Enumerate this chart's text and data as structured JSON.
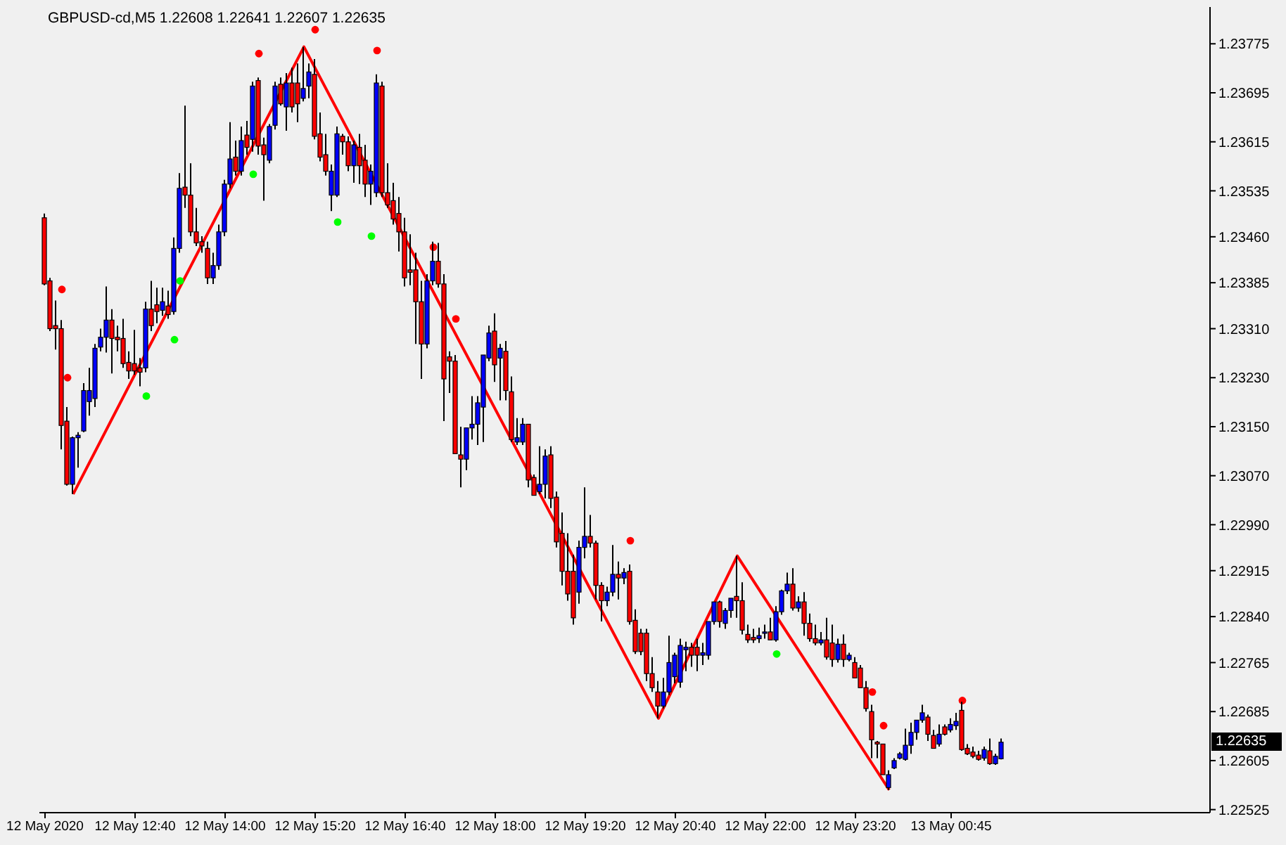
{
  "chart_data": {
    "type": "candlestick",
    "title": "GBPUSD-cd,M5 1.22608 1.22641 1.22607 1.22635",
    "x": [
      "2020-05-12T11:20",
      "2020-05-12T11:25",
      "2020-05-12T11:30",
      "2020-05-12T11:35",
      "2020-05-12T11:40",
      "2020-05-12T11:45",
      "2020-05-12T11:50",
      "2020-05-12T11:55",
      "2020-05-12T12:00",
      "2020-05-12T12:05",
      "2020-05-12T12:10",
      "2020-05-12T12:15",
      "2020-05-12T12:20",
      "2020-05-12T12:25",
      "2020-05-12T12:30",
      "2020-05-12T12:35",
      "2020-05-12T12:40",
      "2020-05-12T12:45",
      "2020-05-12T12:50",
      "2020-05-12T12:55",
      "2020-05-12T13:00",
      "2020-05-12T13:05",
      "2020-05-12T13:10",
      "2020-05-12T13:15",
      "2020-05-12T13:20",
      "2020-05-12T13:25",
      "2020-05-12T13:30",
      "2020-05-12T13:35",
      "2020-05-12T13:40",
      "2020-05-12T13:45",
      "2020-05-12T13:50",
      "2020-05-12T13:55",
      "2020-05-12T14:00",
      "2020-05-12T14:05",
      "2020-05-12T14:10",
      "2020-05-12T14:15",
      "2020-05-12T14:20",
      "2020-05-12T14:25",
      "2020-05-12T14:30",
      "2020-05-12T14:35",
      "2020-05-12T14:40",
      "2020-05-12T14:45",
      "2020-05-12T14:50",
      "2020-05-12T14:55",
      "2020-05-12T15:00",
      "2020-05-12T15:05",
      "2020-05-12T15:10",
      "2020-05-12T15:15",
      "2020-05-12T15:20",
      "2020-05-12T15:25",
      "2020-05-12T15:30",
      "2020-05-12T15:35",
      "2020-05-12T15:40",
      "2020-05-12T15:45",
      "2020-05-12T15:50",
      "2020-05-12T15:55",
      "2020-05-12T16:00",
      "2020-05-12T16:05",
      "2020-05-12T16:10",
      "2020-05-12T16:15",
      "2020-05-12T16:20",
      "2020-05-12T16:25",
      "2020-05-12T16:30",
      "2020-05-12T16:35",
      "2020-05-12T16:40",
      "2020-05-12T16:45",
      "2020-05-12T16:50",
      "2020-05-12T16:55",
      "2020-05-12T17:00",
      "2020-05-12T17:05",
      "2020-05-12T17:10",
      "2020-05-12T17:15",
      "2020-05-12T17:20",
      "2020-05-12T17:25",
      "2020-05-12T17:30",
      "2020-05-12T17:35",
      "2020-05-12T17:40",
      "2020-05-12T17:45",
      "2020-05-12T17:50",
      "2020-05-12T17:55",
      "2020-05-12T18:00",
      "2020-05-12T18:05",
      "2020-05-12T18:10",
      "2020-05-12T18:15",
      "2020-05-12T18:20",
      "2020-05-12T18:25",
      "2020-05-12T18:30",
      "2020-05-12T18:35",
      "2020-05-12T18:40",
      "2020-05-12T18:45",
      "2020-05-12T18:50",
      "2020-05-12T18:55",
      "2020-05-12T19:00",
      "2020-05-12T19:05",
      "2020-05-12T19:10",
      "2020-05-12T19:15",
      "2020-05-12T19:20",
      "2020-05-12T19:25",
      "2020-05-12T19:30",
      "2020-05-12T19:35",
      "2020-05-12T19:40",
      "2020-05-12T19:45",
      "2020-05-12T19:50",
      "2020-05-12T19:55",
      "2020-05-12T20:00",
      "2020-05-12T20:05",
      "2020-05-12T20:10",
      "2020-05-12T20:15",
      "2020-05-12T20:20",
      "2020-05-12T20:25",
      "2020-05-12T20:30",
      "2020-05-12T20:35",
      "2020-05-12T20:40",
      "2020-05-12T20:45",
      "2020-05-12T20:50",
      "2020-05-12T20:55",
      "2020-05-12T21:00",
      "2020-05-12T21:05",
      "2020-05-12T21:10",
      "2020-05-12T21:15",
      "2020-05-12T21:20",
      "2020-05-12T21:25",
      "2020-05-12T21:30",
      "2020-05-12T21:35",
      "2020-05-12T21:40",
      "2020-05-12T21:45",
      "2020-05-12T21:50",
      "2020-05-12T21:55",
      "2020-05-12T22:00",
      "2020-05-12T22:05",
      "2020-05-12T22:10",
      "2020-05-12T22:15",
      "2020-05-12T22:20",
      "2020-05-12T22:25",
      "2020-05-12T22:30",
      "2020-05-12T22:35",
      "2020-05-12T22:40",
      "2020-05-12T22:45",
      "2020-05-12T22:50",
      "2020-05-12T22:55",
      "2020-05-12T23:00",
      "2020-05-12T23:05",
      "2020-05-12T23:10",
      "2020-05-12T23:15",
      "2020-05-12T23:20",
      "2020-05-12T23:25",
      "2020-05-12T23:30",
      "2020-05-12T23:35",
      "2020-05-12T23:40",
      "2020-05-12T23:45",
      "2020-05-12T23:50",
      "2020-05-12T23:55",
      "2020-05-13T00:00",
      "2020-05-13T00:05",
      "2020-05-13T00:10",
      "2020-05-13T00:15",
      "2020-05-13T00:20",
      "2020-05-13T00:25",
      "2020-05-13T00:30",
      "2020-05-13T00:35",
      "2020-05-13T00:40",
      "2020-05-13T00:45",
      "2020-05-13T00:50",
      "2020-05-13T00:55",
      "2020-05-13T01:00",
      "2020-05-13T01:05",
      "2020-05-13T01:10",
      "2020-05-13T01:15",
      "2020-05-13T01:20",
      "2020-05-13T01:25",
      "2020-05-13T01:30"
    ],
    "xlim": [
      "2020-05-12T11:15",
      "2020-05-13T04:35"
    ],
    "xticks": [
      {
        "value": "2020-05-12T11:20",
        "label": "12 May 2020"
      },
      {
        "value": "2020-05-12T12:40",
        "label": "12 May 12:40"
      },
      {
        "value": "2020-05-12T14:00",
        "label": "12 May 14:00"
      },
      {
        "value": "2020-05-12T15:20",
        "label": "12 May 15:20"
      },
      {
        "value": "2020-05-12T16:40",
        "label": "12 May 16:40"
      },
      {
        "value": "2020-05-12T18:00",
        "label": "12 May 18:00"
      },
      {
        "value": "2020-05-12T19:20",
        "label": "12 May 19:20"
      },
      {
        "value": "2020-05-12T20:40",
        "label": "12 May 20:40"
      },
      {
        "value": "2020-05-12T22:00",
        "label": "12 May 22:00"
      },
      {
        "value": "2020-05-12T23:20",
        "label": "12 May 23:20"
      },
      {
        "value": "2020-05-13T00:45",
        "label": "13 May 00:45"
      }
    ],
    "ylim": [
      1.2252,
      1.23835
    ],
    "yticks": [
      1.23775,
      1.23695,
      1.23615,
      1.23535,
      {
        "value": 1.2346,
        "label": "1.23460"
      },
      1.23385,
      {
        "value": 1.2331,
        "label": "1.23310"
      },
      {
        "value": 1.2323,
        "label": "1.23230"
      },
      {
        "value": 1.2315,
        "label": "1.23150"
      },
      {
        "value": 1.2307,
        "label": "1.23070"
      },
      {
        "value": 1.2299,
        "label": "1.22990"
      },
      1.22915,
      {
        "value": 1.2284,
        "label": "1.22840"
      },
      1.22765,
      1.22685,
      1.22605,
      1.22525
    ],
    "annotations": [
      "1.22635"
    ],
    "series": [
      {
        "ohlc": [
          [
            1.23491,
            1.23498,
            1.23381,
            1.23383
          ],
          [
            1.23388,
            1.23393,
            1.23306,
            1.2331
          ],
          [
            1.23315,
            1.23356,
            1.23276,
            1.2331
          ],
          [
            1.2331,
            1.23324,
            1.23113,
            1.23152
          ],
          [
            1.23159,
            1.23182,
            1.23054,
            1.23056
          ],
          [
            1.23056,
            1.23134,
            1.2304,
            1.23132
          ],
          [
            1.23132,
            1.23141,
            1.23083,
            1.23136
          ],
          [
            1.23143,
            1.23221,
            1.23141,
            1.23209
          ],
          [
            1.23191,
            1.23246,
            1.23168,
            1.23209
          ],
          [
            1.23196,
            1.23285,
            1.23182,
            1.23278
          ],
          [
            1.2328,
            1.2331,
            1.23273,
            1.23296
          ],
          [
            1.23296,
            1.23379,
            1.23271,
            1.23324
          ],
          [
            1.23324,
            1.23342,
            1.23237,
            1.23294
          ],
          [
            1.23296,
            1.23315,
            1.23273,
            1.23292
          ],
          [
            1.23294,
            1.23326,
            1.23246,
            1.23253
          ],
          [
            1.23255,
            1.23273,
            1.23228,
            1.23241
          ],
          [
            1.23253,
            1.23308,
            1.23235,
            1.23241
          ],
          [
            1.23246,
            1.23262,
            1.23216,
            1.23239
          ],
          [
            1.23246,
            1.23354,
            1.23239,
            1.23342
          ],
          [
            1.23342,
            1.23388,
            1.23306,
            1.23315
          ],
          [
            1.23349,
            1.23377,
            1.23319,
            1.23338
          ],
          [
            1.2334,
            1.23377,
            1.23331,
            1.23354
          ],
          [
            1.23347,
            1.23372,
            1.23326,
            1.23333
          ],
          [
            1.23338,
            1.23459,
            1.23333,
            1.23441
          ],
          [
            1.23441,
            1.23564,
            1.23434,
            1.23539
          ],
          [
            1.23541,
            1.23674,
            1.23507,
            1.23528
          ],
          [
            1.23528,
            1.2358,
            1.23461,
            1.23468
          ],
          [
            1.23468,
            1.23507,
            1.23445,
            1.2345
          ],
          [
            1.23452,
            1.23461,
            1.23434,
            1.23445
          ],
          [
            1.23441,
            1.23452,
            1.23383,
            1.23393
          ],
          [
            1.23393,
            1.23434,
            1.23383,
            1.23413
          ],
          [
            1.23413,
            1.2348,
            1.23406,
            1.23468
          ],
          [
            1.23468,
            1.23553,
            1.23461,
            1.23546
          ],
          [
            1.23546,
            1.23647,
            1.23539,
            1.23587
          ],
          [
            1.2359,
            1.23617,
            1.2356,
            1.23567
          ],
          [
            1.23567,
            1.2364,
            1.2356,
            1.23617
          ],
          [
            1.23626,
            1.23649,
            1.23594,
            1.23606
          ],
          [
            1.23619,
            1.23713,
            1.23599,
            1.23706
          ],
          [
            1.23715,
            1.2372,
            1.23594,
            1.23608
          ],
          [
            1.2361,
            1.23622,
            1.23519,
            1.23594
          ],
          [
            1.23585,
            1.23644,
            1.2358,
            1.2364
          ],
          [
            1.23642,
            1.23713,
            1.23635,
            1.23706
          ],
          [
            1.23709,
            1.2372,
            1.23674,
            1.23677
          ],
          [
            1.23672,
            1.23727,
            1.23633,
            1.23711
          ],
          [
            1.23711,
            1.23736,
            1.23663,
            1.23672
          ],
          [
            1.23711,
            1.23743,
            1.23647,
            1.23677
          ],
          [
            1.23686,
            1.2377,
            1.23681,
            1.23702
          ],
          [
            1.23706,
            1.23743,
            1.23686,
            1.23729
          ],
          [
            1.23725,
            1.2375,
            1.23619,
            1.23624
          ],
          [
            1.23628,
            1.23663,
            1.23583,
            1.2359
          ],
          [
            1.23594,
            1.23628,
            1.2356,
            1.23567
          ],
          [
            1.23528,
            1.23578,
            1.23502,
            1.23567
          ],
          [
            1.23528,
            1.2364,
            1.23525,
            1.23628
          ],
          [
            1.23624,
            1.23628,
            1.23594,
            1.23615
          ],
          [
            1.23615,
            1.23624,
            1.23567,
            1.23576
          ],
          [
            1.23576,
            1.23617,
            1.23548,
            1.2361
          ],
          [
            1.23606,
            1.23628,
            1.23546,
            1.23576
          ],
          [
            1.23585,
            1.2361,
            1.23525,
            1.23546
          ],
          [
            1.23546,
            1.23578,
            1.23512,
            1.23567
          ],
          [
            1.23532,
            1.23725,
            1.23525,
            1.23711
          ],
          [
            1.23706,
            1.23713,
            1.23525,
            1.23532
          ],
          [
            1.23532,
            1.2358,
            1.23507,
            1.23512
          ],
          [
            1.23519,
            1.23548,
            1.2348,
            1.23489
          ],
          [
            1.23498,
            1.23525,
            1.23436,
            1.23468
          ],
          [
            1.23468,
            1.23491,
            1.23379,
            1.23393
          ],
          [
            1.23406,
            1.23464,
            1.23381,
            1.23402
          ],
          [
            1.23406,
            1.23434,
            1.23285,
            1.23354
          ],
          [
            1.23354,
            1.23388,
            1.23228,
            1.23285
          ],
          [
            1.23285,
            1.23399,
            1.23278,
            1.23388
          ],
          [
            1.23388,
            1.23452,
            1.23381,
            1.2342
          ],
          [
            1.2342,
            1.2345,
            1.23377,
            1.23383
          ],
          [
            1.23383,
            1.23399,
            1.23159,
            1.23228
          ],
          [
            1.23264,
            1.23273,
            1.23205,
            1.23257
          ],
          [
            1.23257,
            1.23267,
            1.23106,
            1.23106
          ],
          [
            1.23104,
            1.2315,
            1.23051,
            1.23097
          ],
          [
            1.23097,
            1.23148,
            1.23079,
            1.23148
          ],
          [
            1.23148,
            1.232,
            1.23129,
            1.23154
          ],
          [
            1.23154,
            1.232,
            1.2312,
            1.23189
          ],
          [
            1.23182,
            1.23267,
            1.23125,
            1.23267
          ],
          [
            1.23262,
            1.23315,
            1.23257,
            1.23303
          ],
          [
            1.23306,
            1.23335,
            1.23223,
            1.23251
          ],
          [
            1.23262,
            1.23285,
            1.23193,
            1.23278
          ],
          [
            1.23273,
            1.2329,
            1.23193,
            1.23209
          ],
          [
            1.23207,
            1.23232,
            1.23125,
            1.23129
          ],
          [
            1.23125,
            1.23164,
            1.2312,
            1.23132
          ],
          [
            1.23125,
            1.23164,
            1.2312,
            1.23154
          ],
          [
            1.23154,
            1.23154,
            1.23051,
            1.23063
          ],
          [
            1.23067,
            1.23072,
            1.23038,
            1.23038
          ],
          [
            1.23044,
            1.23118,
            1.2304,
            1.23056
          ],
          [
            1.23056,
            1.23113,
            1.23033,
            1.23102
          ],
          [
            1.23104,
            1.23118,
            1.23017,
            1.23033
          ],
          [
            1.23035,
            1.23044,
            1.22953,
            1.22962
          ],
          [
            1.22976,
            1.2301,
            1.22891,
            1.22914
          ],
          [
            1.22914,
            1.22976,
            1.22866,
            1.22877
          ],
          [
            1.22914,
            1.22941,
            1.22827,
            1.22838
          ],
          [
            1.2288,
            1.22964,
            1.22861,
            1.22953
          ],
          [
            1.22953,
            1.23051,
            1.22935,
            1.22971
          ],
          [
            1.22971,
            1.23006,
            1.22953,
            1.2296
          ],
          [
            1.2296,
            1.22964,
            1.22868,
            1.22891
          ],
          [
            1.22891,
            1.22896,
            1.22832,
            1.22866
          ],
          [
            1.22866,
            1.22889,
            1.22857,
            1.2288
          ],
          [
            1.2288,
            1.22957,
            1.22873,
            1.22909
          ],
          [
            1.22909,
            1.2293,
            1.22868,
            1.22903
          ],
          [
            1.22903,
            1.22919,
            1.22893,
            1.22912
          ],
          [
            1.22914,
            1.22925,
            1.22827,
            1.22832
          ],
          [
            1.22834,
            1.22852,
            1.22779,
            1.22783
          ],
          [
            1.22813,
            1.2282,
            1.22777,
            1.22783
          ],
          [
            1.22813,
            1.2282,
            1.22735,
            1.22747
          ],
          [
            1.22747,
            1.22774,
            1.22717,
            1.22724
          ],
          [
            1.22717,
            1.22735,
            1.22674,
            1.22694
          ],
          [
            1.22694,
            1.2274,
            1.2269,
            1.22717
          ],
          [
            1.22717,
            1.22809,
            1.22712,
            1.22765
          ],
          [
            1.22742,
            1.22781,
            1.22731,
            1.22777
          ],
          [
            1.22733,
            1.22804,
            1.22724,
            1.22793
          ],
          [
            1.22786,
            1.22799,
            1.22751,
            1.2279
          ],
          [
            1.2279,
            1.22797,
            1.22758,
            1.22777
          ],
          [
            1.2279,
            1.22804,
            1.22751,
            1.22777
          ],
          [
            1.22777,
            1.22797,
            1.22761,
            1.22781
          ],
          [
            1.22777,
            1.22832,
            1.2277,
            1.22832
          ],
          [
            1.22832,
            1.22864,
            1.22827,
            1.22864
          ],
          [
            1.22864,
            1.22866,
            1.22822,
            1.22832
          ],
          [
            1.22829,
            1.22854,
            1.2282,
            1.2285
          ],
          [
            1.2285,
            1.2287,
            1.22838,
            1.2287
          ],
          [
            1.22873,
            1.22939,
            1.22838,
            1.22866
          ],
          [
            1.22866,
            1.22896,
            1.22811,
            1.22818
          ],
          [
            1.22811,
            1.22827,
            1.22797,
            1.22802
          ],
          [
            1.22806,
            1.2282,
            1.22797,
            1.22802
          ],
          [
            1.22804,
            1.22822,
            1.22797,
            1.22809
          ],
          [
            1.22813,
            1.22827,
            1.22804,
            1.22815
          ],
          [
            1.22815,
            1.22838,
            1.22802,
            1.22802
          ],
          [
            1.22802,
            1.22857,
            1.22799,
            1.22848
          ],
          [
            1.22848,
            1.22884,
            1.22843,
            1.22882
          ],
          [
            1.22882,
            1.22912,
            1.22877,
            1.22893
          ],
          [
            1.22893,
            1.22919,
            1.2285,
            1.22854
          ],
          [
            1.22854,
            1.22873,
            1.22848,
            1.22864
          ],
          [
            1.22864,
            1.2288,
            1.22809,
            1.22829
          ],
          [
            1.22829,
            1.22845,
            1.22799,
            1.22804
          ],
          [
            1.22804,
            1.22827,
            1.22793,
            1.22797
          ],
          [
            1.22797,
            1.22815,
            1.22793,
            1.22802
          ],
          [
            1.22802,
            1.22838,
            1.2277,
            1.22774
          ],
          [
            1.22797,
            1.22827,
            1.22758,
            1.2277
          ],
          [
            1.2277,
            1.22804,
            1.22765,
            1.22795
          ],
          [
            1.22795,
            1.22811,
            1.22758,
            1.2277
          ],
          [
            1.2277,
            1.22781,
            1.22767,
            1.22777
          ],
          [
            1.22765,
            1.22774,
            1.2274,
            1.2274
          ],
          [
            1.22756,
            1.22761,
            1.22724,
            1.22724
          ],
          [
            1.22724,
            1.22735,
            1.22685,
            1.2269
          ],
          [
            1.22685,
            1.22696,
            1.22609,
            1.22639
          ],
          [
            1.22635,
            1.22637,
            1.22609,
            1.22632
          ],
          [
            1.22632,
            1.22632,
            1.22582,
            1.22582
          ],
          [
            1.22561,
            1.22589,
            1.22557,
            1.22582
          ],
          [
            1.22593,
            1.22609,
            1.22591,
            1.22605
          ],
          [
            1.22609,
            1.22619,
            1.22607,
            1.22616
          ],
          [
            1.22607,
            1.22657,
            1.22605,
            1.2263
          ],
          [
            1.2263,
            1.22667,
            1.22616,
            1.22651
          ],
          [
            1.22651,
            1.22671,
            1.22639,
            1.22671
          ],
          [
            1.22671,
            1.22696,
            1.22667,
            1.22683
          ],
          [
            1.22676,
            1.2268,
            1.22637,
            1.22648
          ],
          [
            1.22646,
            1.22655,
            1.22625,
            1.22625
          ],
          [
            1.22632,
            1.22664,
            1.22628,
            1.22648
          ],
          [
            1.2266,
            1.22664,
            1.22646,
            1.22648
          ],
          [
            1.22655,
            1.22674,
            1.22651,
            1.22664
          ],
          [
            1.22662,
            1.22683,
            1.22655,
            1.22669
          ],
          [
            1.22687,
            1.22701,
            1.22621,
            1.22623
          ],
          [
            1.22625,
            1.22632,
            1.22614,
            1.22616
          ],
          [
            1.22619,
            1.22628,
            1.22609,
            1.22612
          ],
          [
            1.22614,
            1.22621,
            1.22605,
            1.22607
          ],
          [
            1.22609,
            1.22628,
            1.22605,
            1.22623
          ],
          [
            1.22621,
            1.22641,
            1.22598,
            1.226
          ],
          [
            1.226,
            1.22616,
            1.22598,
            1.22612
          ],
          [
            1.22608,
            1.22641,
            1.22607,
            1.22635
          ]
        ],
        "colors": [
          "#ff0000",
          "#ff0000",
          "#ff0000",
          "#ff0000",
          "#ff0000",
          "#0000ff",
          "#0000ff",
          "#0000ff",
          "#0000ff",
          "#0000ff",
          "#0000ff",
          "#0000ff",
          "#ff0000",
          "#ff0000",
          "#ff0000",
          "#ff0000",
          "#ff0000",
          "#ff0000",
          "#0000ff",
          "#ff0000",
          "#ff0000",
          "#0000ff",
          "#ff0000",
          "#0000ff",
          "#0000ff",
          "#ff0000",
          "#ff0000",
          "#ff0000",
          "#ff0000",
          "#ff0000",
          "#0000ff",
          "#0000ff",
          "#0000ff",
          "#0000ff",
          "#ff0000",
          "#0000ff",
          "#ff0000",
          "#0000ff",
          "#ff0000",
          "#ff0000",
          "#0000ff",
          "#0000ff",
          "#ff0000",
          "#0000ff",
          "#ff0000",
          "#ff0000",
          "#0000ff",
          "#0000ff",
          "#ff0000",
          "#ff0000",
          "#ff0000",
          "#0000ff",
          "#0000ff",
          "#ff0000",
          "#ff0000",
          "#0000ff",
          "#ff0000",
          "#ff0000",
          "#0000ff",
          "#0000ff",
          "#ff0000",
          "#ff0000",
          "#ff0000",
          "#ff0000",
          "#ff0000",
          "#ff0000",
          "#ff0000",
          "#ff0000",
          "#0000ff",
          "#0000ff",
          "#ff0000",
          "#ff0000",
          "#ff0000",
          "#ff0000",
          "#ff0000",
          "#0000ff",
          "#0000ff",
          "#0000ff",
          "#0000ff",
          "#0000ff",
          "#ff0000",
          "#0000ff",
          "#ff0000",
          "#ff0000",
          "#0000ff",
          "#0000ff",
          "#ff0000",
          "#ff0000",
          "#0000ff",
          "#0000ff",
          "#ff0000",
          "#ff0000",
          "#ff0000",
          "#ff0000",
          "#ff0000",
          "#0000ff",
          "#0000ff",
          "#ff0000",
          "#ff0000",
          "#ff0000",
          "#0000ff",
          "#0000ff",
          "#ff0000",
          "#0000ff",
          "#ff0000",
          "#ff0000",
          "#ff0000",
          "#ff0000",
          "#ff0000",
          "#ff0000",
          "#0000ff",
          "#0000ff",
          "#0000ff",
          "#0000ff",
          "#0000ff",
          "#ff0000",
          "#ff0000",
          "#0000ff",
          "#0000ff",
          "#0000ff",
          "#ff0000",
          "#0000ff",
          "#0000ff",
          "#ff0000",
          "#ff0000",
          "#ff0000",
          "#ff0000",
          "#0000ff",
          "#0000ff",
          "#ff0000",
          "#0000ff",
          "#0000ff",
          "#0000ff",
          "#ff0000",
          "#0000ff",
          "#ff0000",
          "#ff0000",
          "#ff0000",
          "#0000ff",
          "#ff0000",
          "#ff0000",
          "#0000ff",
          "#ff0000",
          "#0000ff",
          "#ff0000",
          "#ff0000",
          "#ff0000",
          "#ff0000",
          "#ff0000",
          "#ff0000",
          "#0000ff",
          "#0000ff",
          "#0000ff",
          "#0000ff",
          "#0000ff",
          "#0000ff",
          "#0000ff",
          "#ff0000",
          "#ff0000",
          "#0000ff",
          "#ff0000",
          "#0000ff",
          "#0000ff",
          "#ff0000",
          "#ff0000",
          "#ff0000",
          "#ff0000",
          "#0000ff",
          "#ff0000",
          "#0000ff",
          "#0000ff"
        ]
      },
      {
        "type": "line",
        "color": "#ff0000",
        "x": [
          "2020-05-12T11:45",
          "2020-05-12T15:10",
          "2020-05-12T20:25",
          "2020-05-12T21:35",
          "2020-05-12T23:50"
        ],
        "values": [
          1.2304,
          1.2377,
          1.22674,
          1.22939,
          1.22557
        ]
      },
      {
        "type": "scatter",
        "color": "#ff0000",
        "marker": "circle",
        "x": [
          "2020-05-12T11:35",
          "2020-05-12T11:40",
          "2020-05-12T14:30",
          "2020-05-12T15:20",
          "2020-05-12T16:15",
          "2020-05-12T17:05",
          "2020-05-12T17:25",
          "2020-05-12T20:00",
          "2020-05-12T23:35",
          "2020-05-12T23:45",
          "2020-05-13T00:55"
        ],
        "values": [
          1.23374,
          1.2323,
          1.23759,
          1.23798,
          1.23764,
          1.23443,
          1.23326,
          1.22964,
          1.22717,
          1.22662,
          1.22703
        ]
      },
      {
        "type": "scatter",
        "color": "#00ff00",
        "marker": "circle",
        "x": [
          "2020-05-12T12:50",
          "2020-05-12T13:15",
          "2020-05-12T13:20",
          "2020-05-12T14:25",
          "2020-05-12T15:40",
          "2020-05-12T16:10",
          "2020-05-12T22:10"
        ],
        "values": [
          1.232,
          1.23292,
          1.23388,
          1.23562,
          1.23484,
          1.23461,
          1.22779
        ]
      }
    ]
  }
}
